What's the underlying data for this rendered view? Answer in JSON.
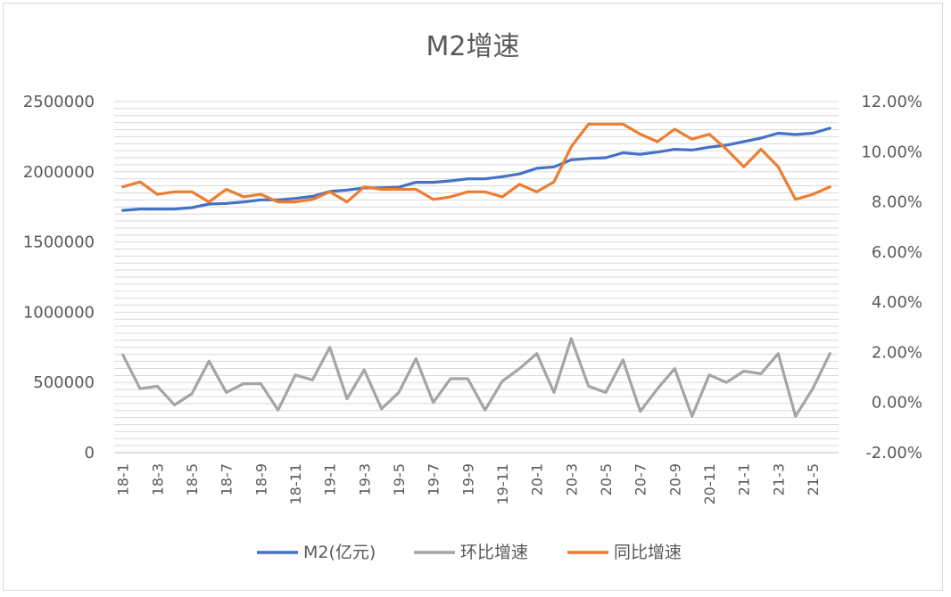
{
  "chart_data": {
    "type": "line",
    "title": "M2增速",
    "categories": [
      "18-1",
      "18-2",
      "18-3",
      "18-4",
      "18-5",
      "18-6",
      "18-7",
      "18-8",
      "18-9",
      "18-10",
      "18-11",
      "18-12",
      "19-1",
      "19-2",
      "19-3",
      "19-4",
      "19-5",
      "19-6",
      "19-7",
      "19-8",
      "19-9",
      "19-10",
      "19-11",
      "19-12",
      "20-1",
      "20-2",
      "20-3",
      "20-4",
      "20-5",
      "20-6",
      "20-7",
      "20-8",
      "20-9",
      "20-10",
      "20-11",
      "20-12",
      "21-1",
      "21-2",
      "21-3",
      "21-4",
      "21-5",
      "21-6"
    ],
    "x_tick_labels": [
      "18-1",
      "18-3",
      "18-5",
      "18-7",
      "18-9",
      "18-11",
      "19-1",
      "19-3",
      "19-5",
      "19-7",
      "19-9",
      "19-11",
      "20-1",
      "20-3",
      "20-5",
      "20-7",
      "20-9",
      "20-11",
      "21-1",
      "21-3",
      "21-5"
    ],
    "y_left": {
      "ticks": [
        "0",
        "500000",
        "1000000",
        "1500000",
        "2000000",
        "2500000"
      ],
      "lim": [
        0,
        2500000
      ]
    },
    "y_right": {
      "ticks": [
        "-2.00%",
        "0.00%",
        "2.00%",
        "4.00%",
        "6.00%",
        "8.00%",
        "10.00%",
        "12.00%"
      ],
      "lim": [
        -2,
        12
      ]
    },
    "series": [
      {
        "name": "M2(亿元)",
        "axis": "left",
        "color": "#4472c4",
        "values": [
          1725000,
          1735000,
          1735000,
          1735000,
          1745000,
          1770000,
          1775000,
          1785000,
          1800000,
          1800000,
          1810000,
          1825000,
          1860000,
          1870000,
          1885000,
          1885000,
          1890000,
          1925000,
          1925000,
          1935000,
          1950000,
          1950000,
          1965000,
          1985000,
          2025000,
          2035000,
          2085000,
          2095000,
          2100000,
          2135000,
          2125000,
          2140000,
          2160000,
          2155000,
          2175000,
          2190000,
          2215000,
          2240000,
          2275000,
          2265000,
          2275000,
          2310000
        ]
      },
      {
        "name": "环比增速",
        "axis": "right",
        "color": "#a5a5a5",
        "values": [
          1.9,
          0.55,
          0.65,
          -0.1,
          0.35,
          1.65,
          0.4,
          0.75,
          0.75,
          -0.3,
          1.1,
          0.9,
          2.2,
          0.15,
          1.3,
          -0.25,
          0.4,
          1.75,
          0.0,
          0.95,
          0.95,
          -0.3,
          0.85,
          1.35,
          1.95,
          0.4,
          2.55,
          0.65,
          0.4,
          1.7,
          -0.35,
          0.55,
          1.35,
          -0.55,
          1.1,
          0.8,
          1.25,
          1.15,
          1.95,
          -0.55,
          0.55,
          1.95
        ]
      },
      {
        "name": "同比增速",
        "axis": "right",
        "color": "#ed7d31",
        "values": [
          8.6,
          8.8,
          8.3,
          8.4,
          8.4,
          8.0,
          8.5,
          8.2,
          8.3,
          8.0,
          8.0,
          8.1,
          8.4,
          8.0,
          8.6,
          8.5,
          8.5,
          8.5,
          8.1,
          8.2,
          8.4,
          8.4,
          8.2,
          8.7,
          8.4,
          8.8,
          10.2,
          11.1,
          11.1,
          11.1,
          10.7,
          10.4,
          10.9,
          10.5,
          10.7,
          10.1,
          9.4,
          10.1,
          9.4,
          8.1,
          8.3,
          8.6
        ]
      }
    ],
    "grid": true,
    "legend_position": "bottom"
  }
}
